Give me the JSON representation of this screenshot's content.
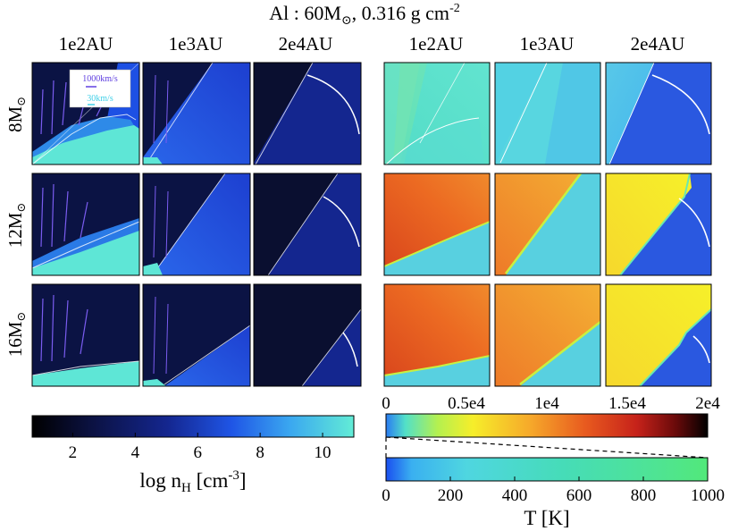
{
  "title": {
    "prefix": "Al : 60M",
    "sub": "⊙",
    "mid": ", 0.316 g cm",
    "sup": "-2"
  },
  "columns": {
    "density": [
      "1e2AU",
      "1e3AU",
      "2e4AU"
    ],
    "temperature": [
      "1e2AU",
      "1e3AU",
      "2e4AU"
    ]
  },
  "rows": [
    {
      "label": "8M",
      "sub": "⊙"
    },
    {
      "label": "12M",
      "sub": "⊙"
    },
    {
      "label": "16M",
      "sub": "⊙"
    }
  ],
  "legend": {
    "arrow1": "1000km/s",
    "arrow2": "30km/s",
    "color1": "#6040e0",
    "color2": "#40d0e8"
  },
  "chart_data": [
    {
      "type": "heatmap",
      "name": "density panels",
      "quantity": "log nH",
      "colorbar": {
        "label_main": "log n",
        "label_sub": "H",
        "label_unit": " [cm",
        "label_sup": "-3",
        "label_end": "]",
        "range": [
          0.7,
          11
        ],
        "ticks": [
          2,
          4,
          6,
          8,
          10
        ],
        "colors": [
          "#000000",
          "#0b1140",
          "#14268f",
          "#1f55e6",
          "#3aa7f0",
          "#62ecd6"
        ]
      }
    },
    {
      "type": "heatmap",
      "name": "temperature panels",
      "quantity": "T [K]",
      "colorbar_top": {
        "range": [
          0,
          20000
        ],
        "ticks": [
          "0",
          "0.5e4",
          "1e4",
          "1.5e4",
          "2e4"
        ],
        "colors": [
          "#2a7bf2",
          "#52e0c8",
          "#b4f050",
          "#f6ee2a",
          "#f6a82a",
          "#e85a1f",
          "#c6221a",
          "#6a0a0a",
          "#000000"
        ]
      },
      "colorbar_bottom": {
        "range": [
          0,
          1000
        ],
        "ticks": [
          "0",
          "200",
          "400",
          "600",
          "800",
          "1000"
        ],
        "colors": [
          "#1a4ff0",
          "#3ab0f0",
          "#4fd6e0",
          "#46dcb8",
          "#4fe492",
          "#52e87a"
        ]
      },
      "label": "T [K]"
    }
  ]
}
